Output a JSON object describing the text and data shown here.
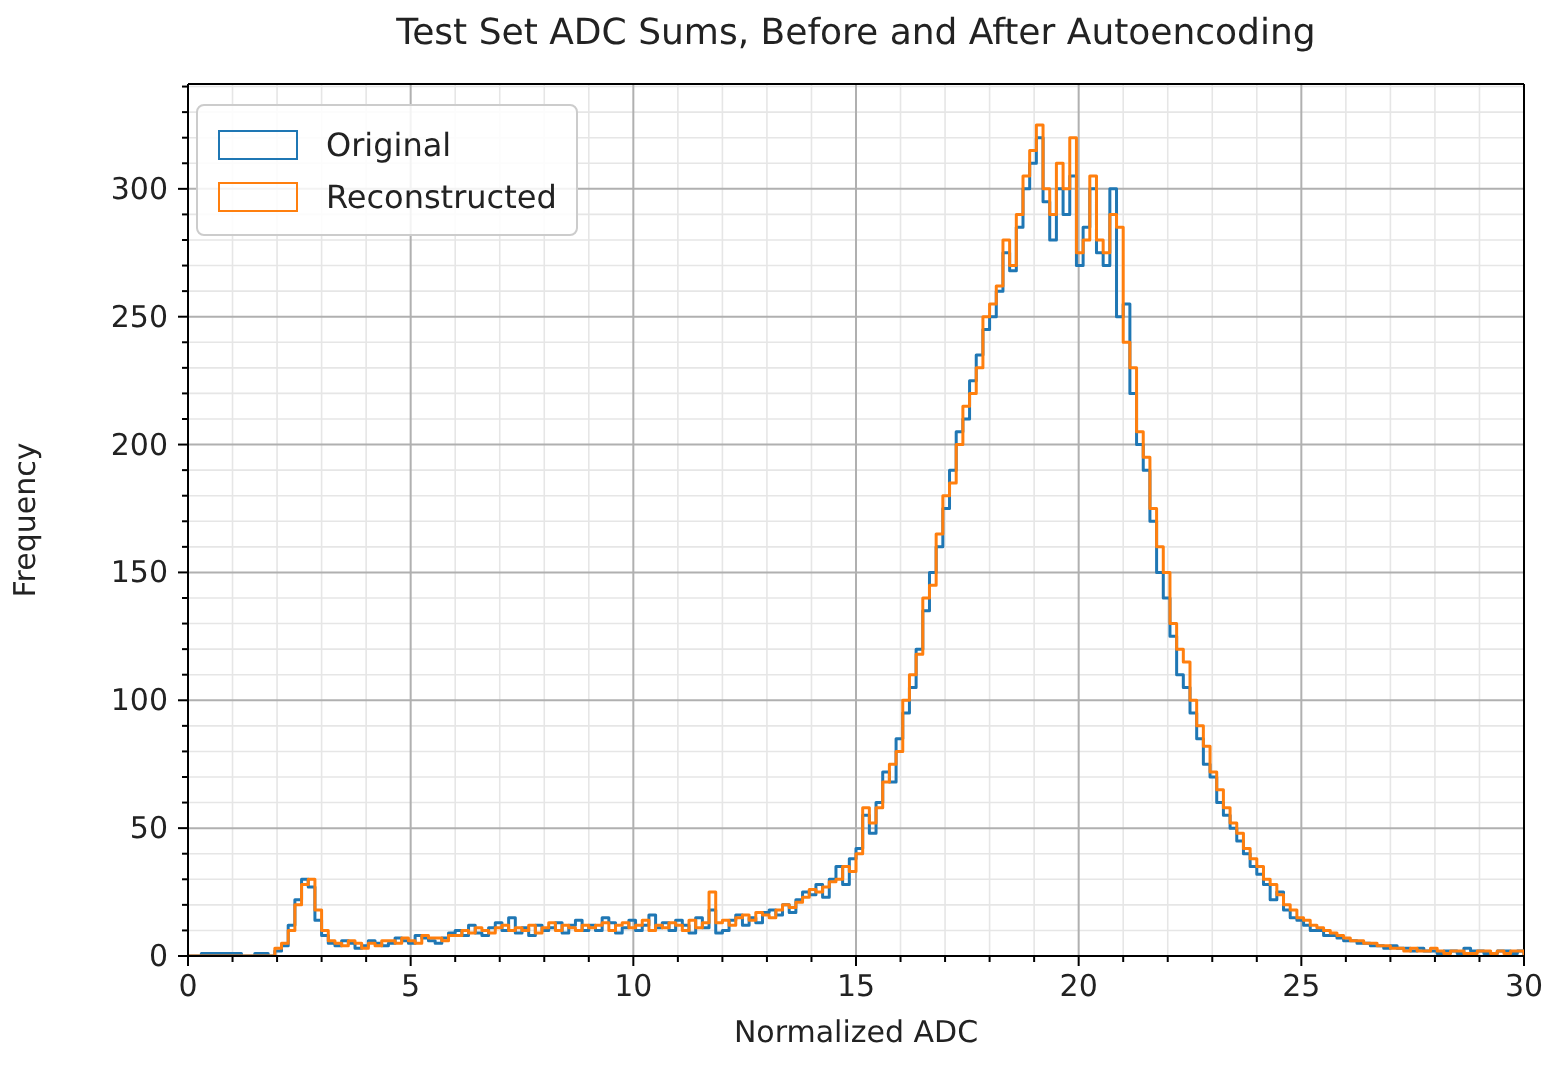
{
  "chart_data": {
    "type": "histogram",
    "title": "Test Set ADC Sums, Before and After Autoencoding",
    "xlabel": "Normalized ADC",
    "ylabel": "Frequency",
    "bins": [
      0,
      0.15,
      0.3,
      0.45,
      0.6,
      0.75,
      0.9,
      1.05,
      1.2,
      1.35,
      1.5,
      1.65,
      1.8,
      1.95,
      2.1,
      2.25,
      2.4,
      2.55,
      2.7,
      2.85,
      3,
      3.15,
      3.3,
      3.45,
      3.6,
      3.75,
      3.9,
      4.05,
      4.2,
      4.35,
      4.5,
      4.65,
      4.8,
      4.95,
      5.1,
      5.25,
      5.4,
      5.55,
      5.7,
      5.85,
      6,
      6.15,
      6.3,
      6.45,
      6.6,
      6.75,
      6.9,
      7.05,
      7.2,
      7.35,
      7.5,
      7.65,
      7.8,
      7.95,
      8.1,
      8.25,
      8.4,
      8.55,
      8.7,
      8.85,
      9,
      9.15,
      9.3,
      9.45,
      9.6,
      9.75,
      9.9,
      10.05,
      10.2,
      10.35,
      10.5,
      10.65,
      10.8,
      10.95,
      11.1,
      11.25,
      11.4,
      11.55,
      11.7,
      11.85,
      12,
      12.15,
      12.3,
      12.45,
      12.6,
      12.75,
      12.9,
      13.05,
      13.2,
      13.35,
      13.5,
      13.65,
      13.8,
      13.95,
      14.1,
      14.25,
      14.4,
      14.55,
      14.7,
      14.85,
      15,
      15.15,
      15.3,
      15.45,
      15.6,
      15.75,
      15.9,
      16.05,
      16.2,
      16.35,
      16.5,
      16.65,
      16.8,
      16.95,
      17.1,
      17.25,
      17.4,
      17.55,
      17.7,
      17.85,
      18,
      18.15,
      18.3,
      18.45,
      18.6,
      18.75,
      18.9,
      19.05,
      19.2,
      19.35,
      19.5,
      19.65,
      19.8,
      19.95,
      20.1,
      20.25,
      20.4,
      20.55,
      20.7,
      20.85,
      21,
      21.15,
      21.3,
      21.45,
      21.6,
      21.75,
      21.9,
      22.05,
      22.2,
      22.35,
      22.5,
      22.65,
      22.8,
      22.95,
      23.1,
      23.25,
      23.4,
      23.55,
      23.7,
      23.85,
      24,
      24.15,
      24.3,
      24.45,
      24.6,
      24.75,
      24.9,
      25.05,
      25.2,
      25.35,
      25.5,
      25.65,
      25.8,
      25.95,
      26.1,
      26.25,
      26.4,
      26.55,
      26.7,
      26.85,
      27,
      27.15,
      27.3,
      27.45,
      27.6,
      27.75,
      27.9,
      28.05,
      28.2,
      28.35,
      28.5,
      28.65,
      28.8,
      28.95,
      29.1,
      29.25,
      29.4,
      29.55,
      29.7,
      29.85,
      30
    ],
    "series": [
      {
        "name": "Original",
        "color": "#1f77b4",
        "values": [
          0,
          0,
          1,
          1,
          1,
          1,
          1,
          1,
          0,
          0,
          1,
          1,
          0,
          2,
          4,
          12,
          22,
          30,
          27,
          14,
          8,
          5,
          4,
          6,
          5,
          3,
          4,
          6,
          5,
          4,
          5,
          7,
          6,
          5,
          8,
          7,
          6,
          5,
          7,
          9,
          10,
          8,
          12,
          9,
          8,
          11,
          13,
          10,
          15,
          9,
          11,
          8,
          12,
          10,
          11,
          13,
          9,
          12,
          14,
          10,
          12,
          10,
          15,
          13,
          9,
          11,
          14,
          10,
          12,
          16,
          11,
          13,
          10,
          14,
          12,
          9,
          15,
          11,
          18,
          9,
          10,
          14,
          16,
          12,
          15,
          13,
          17,
          18,
          16,
          20,
          17,
          22,
          25,
          24,
          28,
          23,
          30,
          35,
          28,
          38,
          42,
          55,
          48,
          60,
          72,
          68,
          85,
          95,
          105,
          120,
          135,
          150,
          160,
          175,
          190,
          205,
          210,
          225,
          235,
          245,
          250,
          260,
          275,
          268,
          285,
          300,
          310,
          320,
          295,
          280,
          300,
          290,
          305,
          270,
          285,
          300,
          275,
          270,
          300,
          250,
          255,
          220,
          200,
          190,
          170,
          150,
          140,
          125,
          110,
          105,
          95,
          85,
          75,
          70,
          60,
          55,
          50,
          45,
          40,
          35,
          32,
          28,
          22,
          25,
          18,
          15,
          14,
          12,
          10,
          10,
          8,
          8,
          7,
          6,
          6,
          5,
          5,
          4,
          4,
          3,
          4,
          3,
          3,
          2,
          3,
          2,
          2,
          1,
          2,
          2,
          1,
          3,
          2,
          2,
          1,
          1,
          2,
          2,
          1,
          2
        ]
      },
      {
        "name": "Reconstructed",
        "color": "#ff7f0e",
        "values": [
          0,
          0,
          0,
          0,
          0,
          0,
          0,
          0,
          0,
          0,
          0,
          0,
          0,
          3,
          5,
          10,
          20,
          28,
          30,
          18,
          10,
          6,
          5,
          4,
          6,
          5,
          3,
          5,
          4,
          6,
          6,
          5,
          7,
          6,
          5,
          8,
          7,
          7,
          6,
          8,
          8,
          10,
          9,
          11,
          10,
          9,
          11,
          12,
          10,
          11,
          10,
          12,
          9,
          11,
          13,
          10,
          12,
          11,
          10,
          12,
          11,
          12,
          13,
          10,
          12,
          13,
          11,
          12,
          14,
          10,
          12,
          11,
          13,
          12,
          10,
          14,
          11,
          13,
          25,
          13,
          14,
          12,
          15,
          16,
          14,
          17,
          16,
          15,
          18,
          20,
          19,
          21,
          23,
          26,
          25,
          27,
          29,
          30,
          35,
          33,
          40,
          58,
          52,
          58,
          68,
          75,
          80,
          100,
          110,
          118,
          140,
          145,
          165,
          180,
          185,
          200,
          215,
          220,
          230,
          250,
          255,
          262,
          280,
          270,
          290,
          305,
          315,
          325,
          300,
          290,
          310,
          300,
          320,
          275,
          280,
          305,
          280,
          275,
          290,
          285,
          240,
          230,
          205,
          195,
          175,
          160,
          150,
          130,
          120,
          115,
          100,
          90,
          82,
          72,
          65,
          58,
          52,
          48,
          42,
          38,
          35,
          30,
          28,
          24,
          20,
          18,
          15,
          14,
          12,
          11,
          10,
          9,
          8,
          7,
          6,
          6,
          5,
          5,
          4,
          4,
          3,
          3,
          2,
          3,
          2,
          2,
          3,
          2,
          1,
          2,
          2,
          1,
          1,
          2,
          2,
          1,
          2,
          1,
          2,
          2
        ]
      }
    ],
    "xlim": [
      0,
      30
    ],
    "xticks": [
      0,
      {
        "value": 1,
        "label": null
      },
      {
        "value": 2,
        "label": null
      },
      {
        "value": 3,
        "label": null
      },
      {
        "value": 4,
        "label": null
      },
      5,
      {
        "value": 6,
        "label": null
      },
      {
        "value": 7,
        "label": null
      },
      {
        "value": 8,
        "label": null
      },
      {
        "value": 9,
        "label": null
      },
      10,
      {
        "value": 11,
        "label": null
      },
      {
        "value": 12,
        "label": null
      },
      {
        "value": 13,
        "label": null
      },
      {
        "value": 14,
        "label": null
      },
      15,
      {
        "value": 16,
        "label": null
      },
      {
        "value": 17,
        "label": null
      },
      {
        "value": 18,
        "label": null
      },
      {
        "value": 19,
        "label": null
      },
      20,
      {
        "value": 21,
        "label": null
      },
      {
        "value": 22,
        "label": null
      },
      {
        "value": 23,
        "label": null
      },
      {
        "value": 24,
        "label": null
      },
      25,
      {
        "value": 26,
        "label": null
      },
      {
        "value": 27,
        "label": null
      },
      {
        "value": 28,
        "label": null
      },
      {
        "value": 29,
        "label": null
      },
      30
    ],
    "ylim": [
      0,
      341
    ],
    "yticks": [
      0,
      {
        "value": 10,
        "label": null
      },
      {
        "value": 20,
        "label": null
      },
      {
        "value": 30,
        "label": null
      },
      {
        "value": 40,
        "label": null
      },
      50,
      {
        "value": 60,
        "label": null
      },
      {
        "value": 70,
        "label": null
      },
      {
        "value": 80,
        "label": null
      },
      {
        "value": 90,
        "label": null
      },
      100,
      {
        "value": 110,
        "label": null
      },
      {
        "value": 120,
        "label": null
      },
      {
        "value": 130,
        "label": null
      },
      {
        "value": 140,
        "label": null
      },
      150,
      {
        "value": 160,
        "label": null
      },
      {
        "value": 170,
        "label": null
      },
      {
        "value": 180,
        "label": null
      },
      {
        "value": 190,
        "label": null
      },
      200,
      {
        "value": 210,
        "label": null
      },
      {
        "value": 220,
        "label": null
      },
      {
        "value": 230,
        "label": null
      },
      {
        "value": 240,
        "label": null
      },
      250,
      {
        "value": 260,
        "label": null
      },
      {
        "value": 270,
        "label": null
      },
      {
        "value": 280,
        "label": null
      },
      {
        "value": 290,
        "label": null
      },
      300,
      {
        "value": 310,
        "label": null
      },
      {
        "value": 320,
        "label": null
      },
      {
        "value": 330,
        "label": null
      },
      {
        "value": 340,
        "label": null
      }
    ],
    "grid": true,
    "legend": "top left"
  }
}
